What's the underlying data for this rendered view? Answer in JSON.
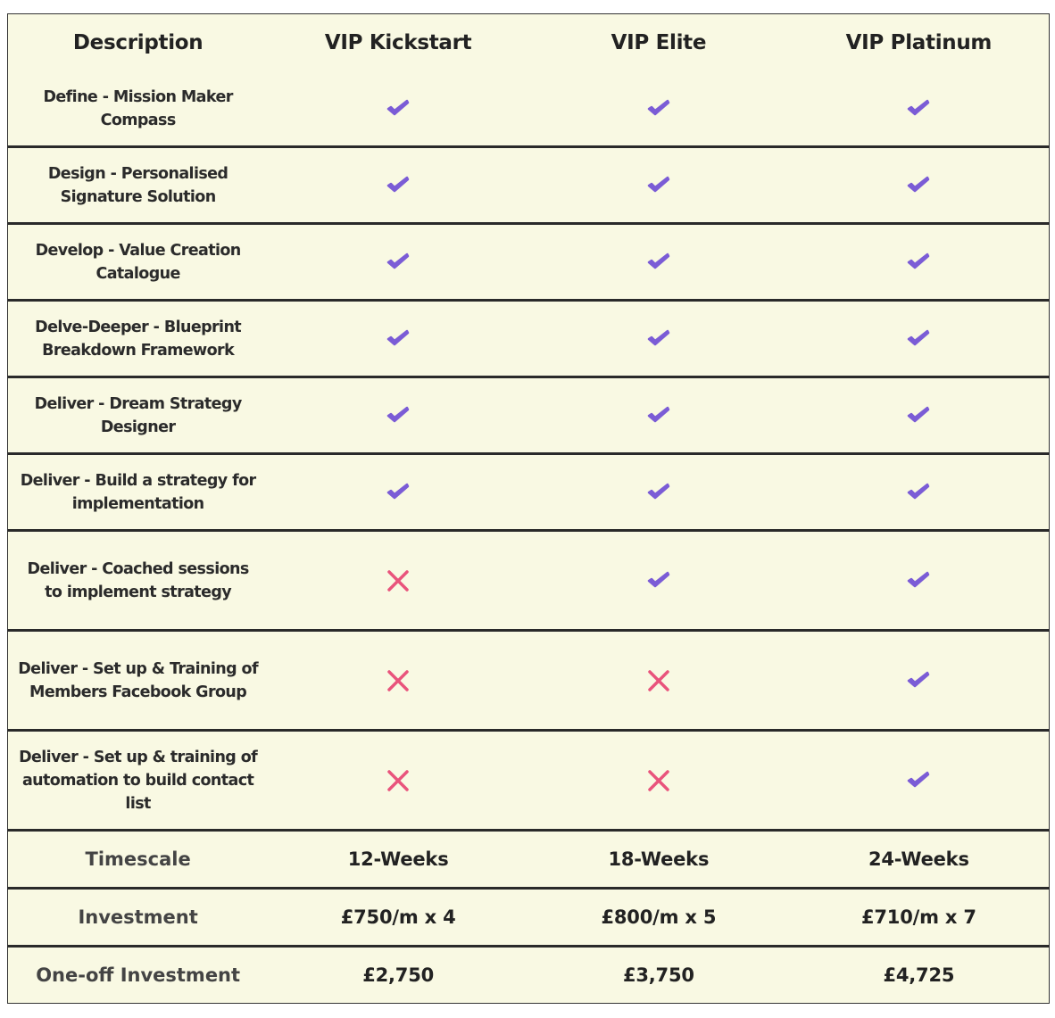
{
  "header": [
    "Description",
    "VIP Kickstart",
    "VIP Elite",
    "VIP Platinum"
  ],
  "features": [
    {
      "label": "Define - Mission Maker Compass",
      "included": [
        true,
        true,
        true
      ]
    },
    {
      "label": "Design - Personalised Signature Solution",
      "included": [
        true,
        true,
        true
      ]
    },
    {
      "label": "Develop - Value Creation Catalogue",
      "included": [
        true,
        true,
        true
      ]
    },
    {
      "label": "Delve-Deeper - Blueprint Breakdown Framework",
      "included": [
        true,
        true,
        true
      ]
    },
    {
      "label": "Deliver - Dream Strategy Designer",
      "included": [
        true,
        true,
        true
      ]
    },
    {
      "label": "Deliver - Build a strategy for implementation",
      "included": [
        true,
        true,
        true
      ]
    },
    {
      "label": "Deliver - Coached sessions to implement strategy",
      "included": [
        false,
        true,
        true
      ]
    },
    {
      "label": "Deliver - Set up & Training of Members Facebook Group",
      "included": [
        false,
        false,
        true
      ]
    },
    {
      "label": "Deliver - Set up & training of automation to build contact list",
      "included": [
        false,
        false,
        true
      ]
    }
  ],
  "summary": [
    {
      "label": "Timescale",
      "values": [
        "12-Weeks",
        "18-Weeks",
        "24-Weeks"
      ]
    },
    {
      "label": "Investment",
      "values": [
        "£750/m x 4",
        "£800/m x 5",
        "£710/m x 7"
      ]
    },
    {
      "label": "One-off Investment",
      "values": [
        "£2,750",
        "£3,750",
        "£4,725"
      ]
    }
  ]
}
